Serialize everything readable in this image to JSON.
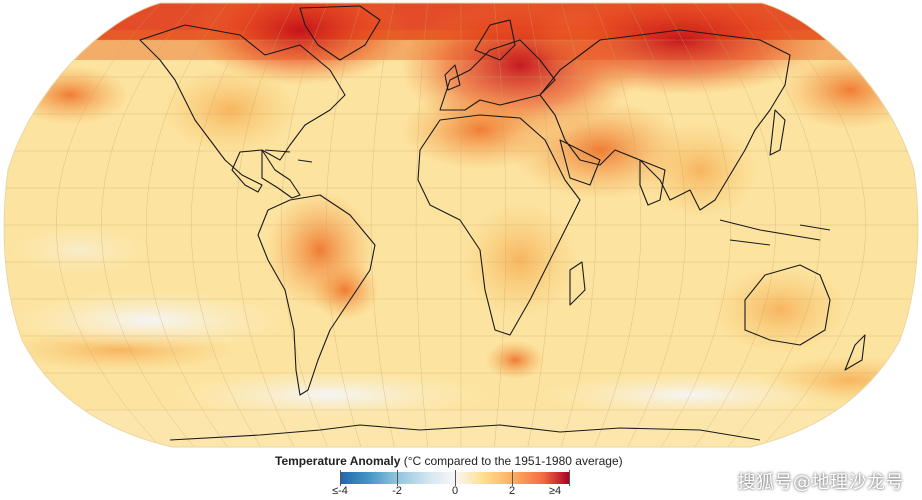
{
  "legend": {
    "title_bold": "Temperature Anomaly",
    "title_rest": " (°C compared to the 1951-1980 average)",
    "ticks": [
      "≤-4",
      "-2",
      "0",
      "2",
      "≥4"
    ],
    "colors": [
      "#2166ac",
      "#92c5de",
      "#f7f7f7",
      "#fdae61",
      "#a50026"
    ]
  },
  "watermark": "搜狐号@地理沙龙号",
  "map": {
    "projection": "Robinson",
    "ocean_base_color": "#fce7a8",
    "hot_color": "#c4101a",
    "cool_color": "#f4f6fb"
  }
}
